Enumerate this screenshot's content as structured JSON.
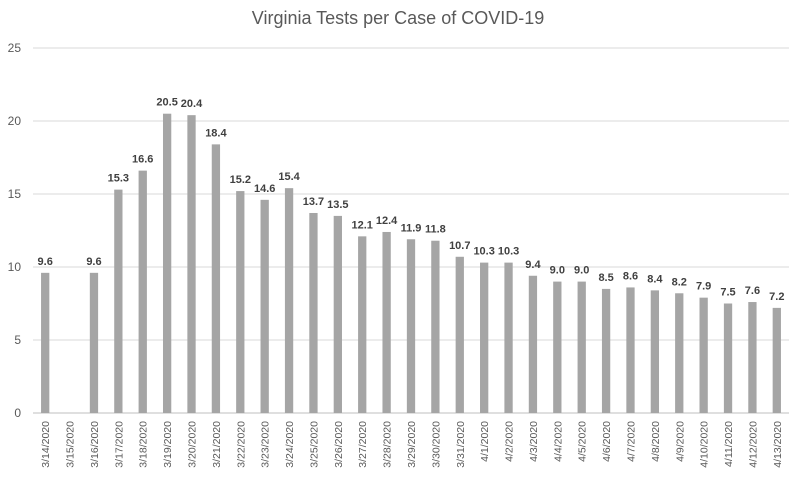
{
  "chart_data": {
    "type": "bar",
    "title": "Virginia Tests per Case of COVID-19",
    "xlabel": "",
    "ylabel": "",
    "ylim": [
      0,
      25
    ],
    "yticks": [
      0,
      5,
      10,
      15,
      20,
      25
    ],
    "grid": true,
    "legend": "none",
    "bar_color": "#a5a5a5",
    "categories": [
      "3/14/2020",
      "3/15/2020",
      "3/16/2020",
      "3/17/2020",
      "3/18/2020",
      "3/19/2020",
      "3/20/2020",
      "3/21/2020",
      "3/22/2020",
      "3/23/2020",
      "3/24/2020",
      "3/25/2020",
      "3/26/2020",
      "3/27/2020",
      "3/28/2020",
      "3/29/2020",
      "3/30/2020",
      "3/31/2020",
      "4/1/2020",
      "4/2/2020",
      "4/3/2020",
      "4/4/2020",
      "4/5/2020",
      "4/6/2020",
      "4/7/2020",
      "4/8/2020",
      "4/9/2020",
      "4/10/2020",
      "4/11/2020",
      "4/12/2020",
      "4/13/2020"
    ],
    "values": [
      9.6,
      null,
      9.6,
      15.3,
      16.6,
      20.5,
      20.4,
      18.4,
      15.2,
      14.6,
      15.4,
      13.7,
      13.5,
      12.1,
      12.4,
      11.9,
      11.8,
      10.7,
      10.3,
      10.3,
      9.4,
      9.0,
      9.0,
      8.5,
      8.6,
      8.4,
      8.2,
      7.9,
      7.5,
      7.6,
      7.2
    ],
    "data_labels": [
      "9.6",
      "",
      "9.6",
      "15.3",
      "16.6",
      "20.5",
      "20.4",
      "18.4",
      "15.2",
      "14.6",
      "15.4",
      "13.7",
      "13.5",
      "12.1",
      "12.4",
      "11.9",
      "11.8",
      "10.7",
      "10.3",
      "10.3",
      "9.4",
      "9.0",
      "9.0",
      "8.5",
      "8.6",
      "8.4",
      "8.2",
      "7.9",
      "7.5",
      "7.6",
      "7.2"
    ]
  }
}
